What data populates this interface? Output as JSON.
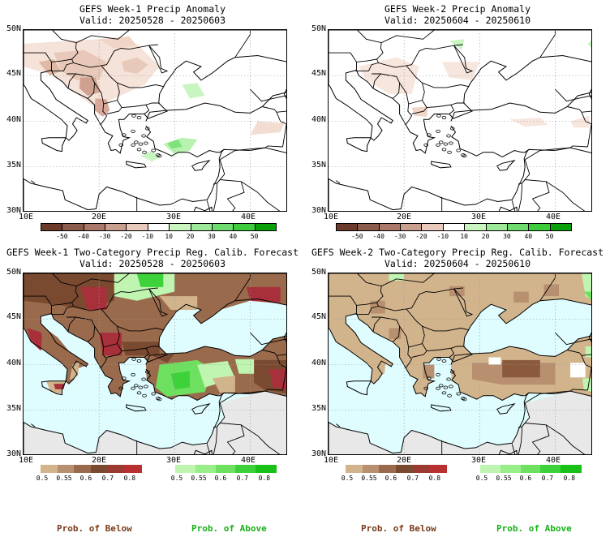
{
  "panels": [
    {
      "title": "GEFS Week-1 Precip Anomaly",
      "valid": "Valid: 20250528 - 20250603",
      "type": "anomaly",
      "lat_ticks": [
        "50N",
        "45N",
        "40N",
        "35N",
        "30N"
      ],
      "lon_ticks": [
        "10E",
        "20E",
        "30E",
        "40E"
      ]
    },
    {
      "title": "GEFS Week-2 Precip Anomaly",
      "valid": "Valid: 20250604 - 20250610",
      "type": "anomaly",
      "lat_ticks": [
        "50N",
        "45N",
        "40N",
        "35N",
        "30N"
      ],
      "lon_ticks": [
        "10E",
        "20E",
        "30E",
        "40E"
      ]
    },
    {
      "title": "GEFS Week-1 Two-Category Precip Reg. Calib. Forecast",
      "valid": "Valid: 20250528 - 20250603",
      "type": "prob1",
      "lat_ticks": [
        "50N",
        "45N",
        "40N",
        "35N",
        "30N"
      ],
      "lon_ticks": [
        "10E",
        "20E",
        "30E",
        "40E"
      ]
    },
    {
      "title": "GEFS Week-2 Two-Category Precip Reg. Calib. Forecast",
      "valid": "Valid: 20250604 - 20250610",
      "type": "prob2",
      "lat_ticks": [
        "50N",
        "45N",
        "40N",
        "35N",
        "30N"
      ],
      "lon_ticks": [
        "10E",
        "20E",
        "30E",
        "40E"
      ]
    }
  ],
  "anomaly_scale": {
    "ticks": [
      "-50",
      "-40",
      "-30",
      "-20",
      "-10",
      "10",
      "20",
      "30",
      "40",
      "50"
    ],
    "colors": [
      "#6b3a2a",
      "#8a5a4a",
      "#a97868",
      "#c9a090",
      "#e8cbbd",
      "#ffffff",
      "#c8f5c0",
      "#9ee89a",
      "#6edc6e",
      "#3ccc3c",
      "#0aa00a"
    ]
  },
  "prob_scale": {
    "ticks": [
      "0.5",
      "0.55",
      "0.6",
      "0.7",
      "0.8"
    ],
    "below_colors": [
      "#d2b48c",
      "#b89070",
      "#9a6a4c",
      "#7a4a30",
      "#9a3a30",
      "#b83030"
    ],
    "above_colors": [
      "#bff5b0",
      "#98ee88",
      "#6ee060",
      "#3ed23a",
      "#18c018"
    ]
  },
  "footer": {
    "below_label": "Prob. of Below",
    "above_label": "Prob. of Above",
    "below_color": "#7a3a1a",
    "above_color": "#18b018"
  },
  "colors": {
    "sea": "#dffcff",
    "land_gray": "#e8e8e8",
    "tan": "#d2b48c",
    "brown": "#8b5a3c",
    "red": "#a8303a",
    "green": "#3ed23a",
    "light_green": "#a8f0a0"
  }
}
